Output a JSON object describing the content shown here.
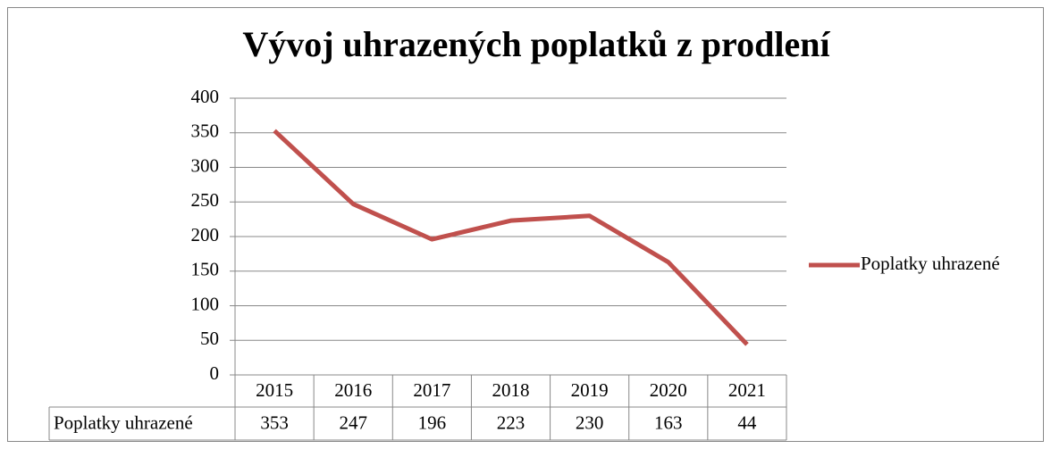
{
  "chart_data": {
    "type": "line",
    "title": "Vývoj uhrazených poplatků z prodlení",
    "categories": [
      "2015",
      "2016",
      "2017",
      "2018",
      "2019",
      "2020",
      "2021"
    ],
    "series": [
      {
        "name": "Poplatky uhrazené",
        "color": "#c0504d",
        "values": [
          353,
          247,
          196,
          223,
          230,
          163,
          44
        ]
      }
    ],
    "ylim": [
      0,
      400
    ],
    "yticks": [
      0,
      50,
      100,
      150,
      200,
      250,
      300,
      350,
      400
    ],
    "grid": true,
    "legend": "right",
    "data_table": true
  }
}
